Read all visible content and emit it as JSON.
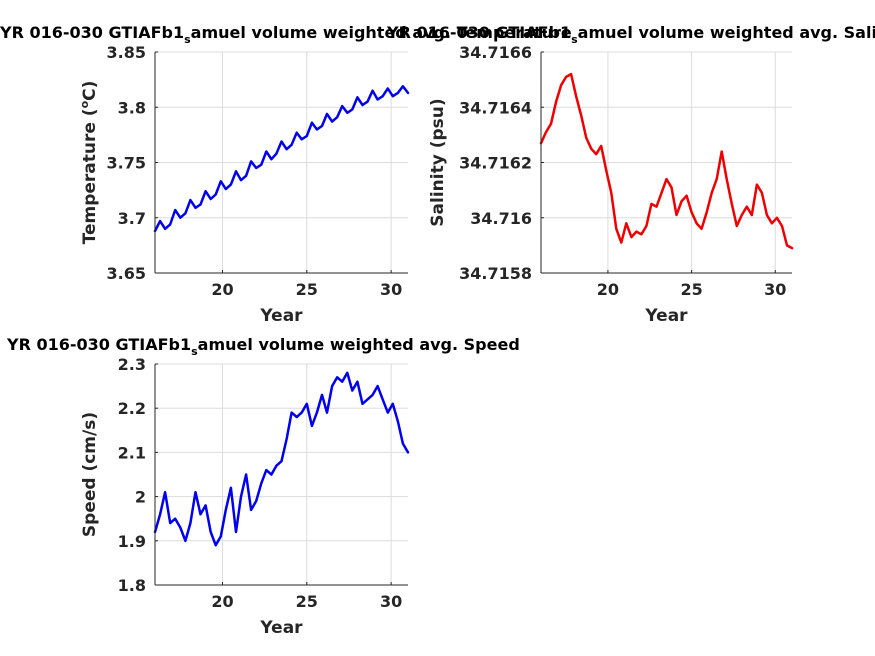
{
  "chart_data": [
    {
      "type": "line",
      "title_main": "YR 016-030 GTIAFb1",
      "title_sub": "s",
      "title_rest": "amuel volume weighted avg. Temperature",
      "xlabel": "Year",
      "ylabel_main": "Temperature (",
      "ylabel_sup": "o",
      "ylabel_rest": "C)",
      "xlim": [
        16,
        31
      ],
      "ylim": [
        3.65,
        3.85
      ],
      "xticks": [
        "20",
        "25",
        "30"
      ],
      "yticks": [
        "3.65",
        "3.7",
        "3.75",
        "3.8",
        "3.85"
      ],
      "grid": true,
      "color": "#0000ee",
      "series": [
        {
          "x": [
            16.0,
            16.3,
            16.6,
            16.9,
            17.2,
            17.5,
            17.8,
            18.1,
            18.4,
            18.7,
            19.0,
            19.3,
            19.6,
            19.9,
            20.2,
            20.5,
            20.8,
            21.1,
            21.4,
            21.7,
            22.0,
            22.3,
            22.6,
            22.9,
            23.2,
            23.5,
            23.8,
            24.1,
            24.4,
            24.7,
            25.0,
            25.3,
            25.6,
            25.9,
            26.2,
            26.5,
            26.8,
            27.1,
            27.4,
            27.7,
            28.0,
            28.3,
            28.6,
            28.9,
            29.2,
            29.5,
            29.8,
            30.1,
            30.4,
            30.7,
            31.0
          ],
          "y": [
            3.688,
            3.697,
            3.69,
            3.694,
            3.707,
            3.7,
            3.704,
            3.716,
            3.709,
            3.712,
            3.724,
            3.717,
            3.721,
            3.733,
            3.726,
            3.73,
            3.742,
            3.734,
            3.738,
            3.751,
            3.745,
            3.748,
            3.76,
            3.753,
            3.758,
            3.769,
            3.762,
            3.766,
            3.777,
            3.771,
            3.774,
            3.786,
            3.78,
            3.783,
            3.794,
            3.787,
            3.791,
            3.801,
            3.795,
            3.798,
            3.809,
            3.802,
            3.805,
            3.815,
            3.807,
            3.81,
            3.817,
            3.81,
            3.813,
            3.819,
            3.813
          ]
        }
      ]
    },
    {
      "type": "line",
      "title_main": "YR 016-030 GTIAFb1",
      "title_sub": "s",
      "title_rest": "amuel volume weighted avg. Salinity",
      "xlabel": "Year",
      "ylabel_main": "Salinity (psu)",
      "ylabel_sup": "",
      "ylabel_rest": "",
      "xlim": [
        16,
        31
      ],
      "ylim": [
        34.7158,
        34.7166
      ],
      "xticks": [
        "20",
        "25",
        "30"
      ],
      "yticks": [
        "34.7158",
        "34.716",
        "34.7162",
        "34.7164",
        "34.7166"
      ],
      "grid": true,
      "color": "#ee0000",
      "series": [
        {
          "x": [
            16.0,
            16.3,
            16.6,
            16.9,
            17.2,
            17.5,
            17.8,
            18.1,
            18.4,
            18.7,
            19.0,
            19.3,
            19.6,
            19.9,
            20.2,
            20.5,
            20.8,
            21.1,
            21.4,
            21.7,
            22.0,
            22.3,
            22.6,
            22.9,
            23.2,
            23.5,
            23.8,
            24.1,
            24.4,
            24.7,
            25.0,
            25.3,
            25.6,
            25.9,
            26.2,
            26.5,
            26.8,
            27.1,
            27.4,
            27.7,
            28.0,
            28.3,
            28.6,
            28.9,
            29.2,
            29.5,
            29.8,
            30.1,
            30.4,
            30.7,
            31.0
          ],
          "y": [
            34.71627,
            34.71631,
            34.71634,
            34.71642,
            34.71648,
            34.71651,
            34.71652,
            34.71644,
            34.71637,
            34.71629,
            34.71625,
            34.71623,
            34.71626,
            34.71617,
            34.71609,
            34.71596,
            34.71591,
            34.71598,
            34.71593,
            34.71595,
            34.71594,
            34.71597,
            34.71605,
            34.71604,
            34.71609,
            34.71614,
            34.71611,
            34.71601,
            34.71606,
            34.71608,
            34.71602,
            34.71598,
            34.71596,
            34.71602,
            34.71609,
            34.71614,
            34.71624,
            34.71614,
            34.71605,
            34.71597,
            34.71601,
            34.71604,
            34.71601,
            34.71612,
            34.71609,
            34.71601,
            34.71598,
            34.716,
            34.71597,
            34.7159,
            34.71589
          ]
        }
      ]
    },
    {
      "type": "line",
      "title_main": "YR 016-030 GTIAFb1",
      "title_sub": "s",
      "title_rest": "amuel volume weighted avg. Speed",
      "xlabel": "Year",
      "ylabel_main": "Speed (cm/s)",
      "ylabel_sup": "",
      "ylabel_rest": "",
      "xlim": [
        16,
        31
      ],
      "ylim": [
        1.8,
        2.3
      ],
      "xticks": [
        "20",
        "25",
        "30"
      ],
      "yticks": [
        "1.8",
        "1.9",
        "2",
        "2.1",
        "2.2",
        "2.3"
      ],
      "grid": true,
      "color": "#0000ee",
      "series": [
        {
          "x": [
            16.0,
            16.3,
            16.6,
            16.9,
            17.2,
            17.5,
            17.8,
            18.1,
            18.4,
            18.7,
            19.0,
            19.3,
            19.6,
            19.9,
            20.2,
            20.5,
            20.8,
            21.1,
            21.4,
            21.7,
            22.0,
            22.3,
            22.6,
            22.9,
            23.2,
            23.5,
            23.8,
            24.1,
            24.4,
            24.7,
            25.0,
            25.3,
            25.6,
            25.9,
            26.2,
            26.5,
            26.8,
            27.1,
            27.4,
            27.7,
            28.0,
            28.3,
            28.6,
            28.9,
            29.2,
            29.5,
            29.8,
            30.1,
            30.4,
            30.7,
            31.0
          ],
          "y": [
            1.92,
            1.96,
            2.01,
            1.94,
            1.95,
            1.93,
            1.9,
            1.94,
            2.01,
            1.96,
            1.98,
            1.92,
            1.89,
            1.91,
            1.97,
            2.02,
            1.92,
            2.0,
            2.05,
            1.97,
            1.99,
            2.03,
            2.06,
            2.05,
            2.07,
            2.08,
            2.13,
            2.19,
            2.18,
            2.19,
            2.21,
            2.16,
            2.19,
            2.23,
            2.19,
            2.25,
            2.27,
            2.26,
            2.28,
            2.24,
            2.26,
            2.21,
            2.22,
            2.23,
            2.25,
            2.22,
            2.19,
            2.21,
            2.17,
            2.12,
            2.1
          ]
        }
      ]
    }
  ]
}
